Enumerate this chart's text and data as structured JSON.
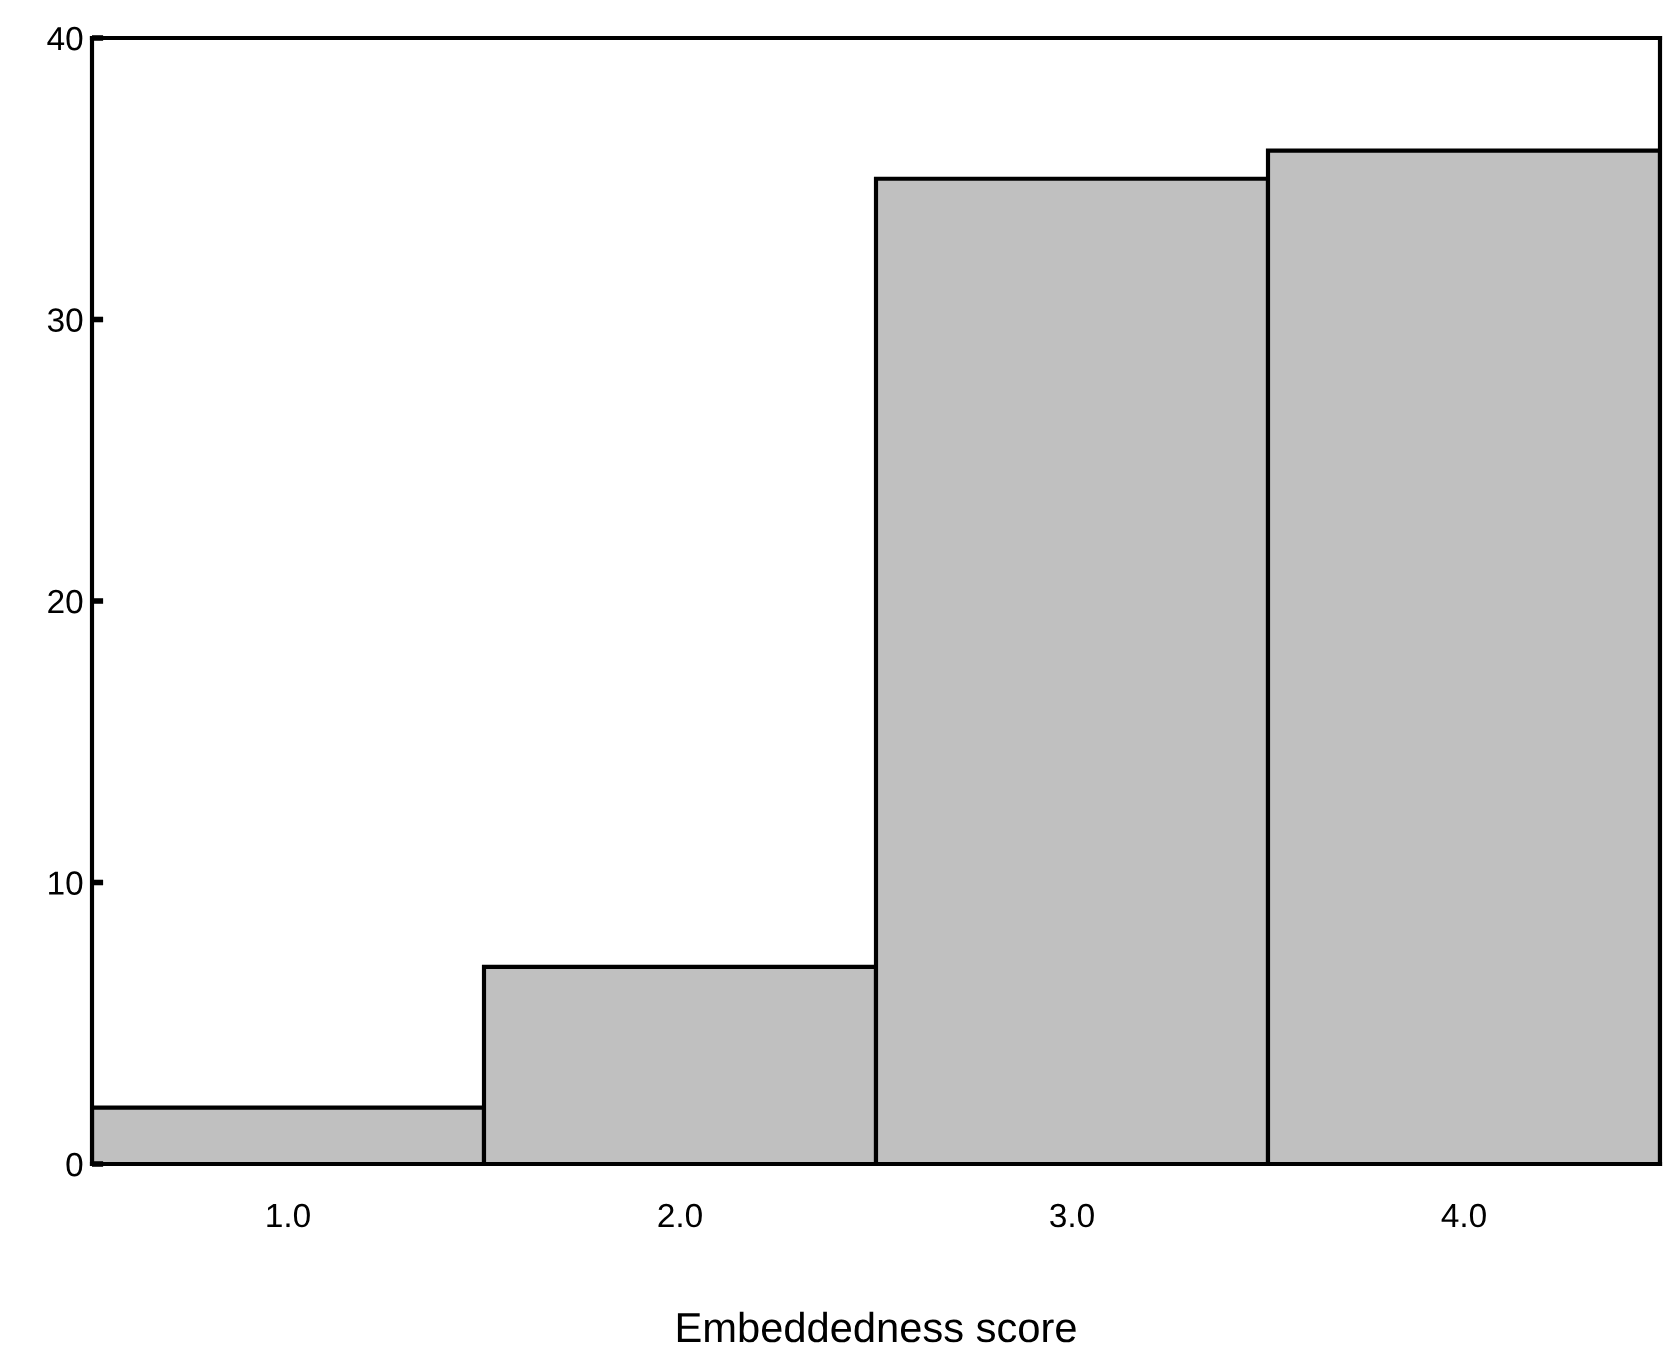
{
  "chart_data": {
    "type": "histogram",
    "xlabel": "Embeddedness score",
    "bins": [
      0.5,
      1.5,
      2.5,
      3.5,
      4.5
    ],
    "values": [
      2,
      7,
      35,
      36
    ],
    "color": "#c0c0c0",
    "xlim": [
      0.5,
      4.5
    ],
    "xticks": [
      {
        "value": 1,
        "label": "1.0"
      },
      {
        "value": 2,
        "label": "2.0"
      },
      {
        "value": 3,
        "label": "3.0"
      },
      {
        "value": 4,
        "label": "4.0"
      }
    ],
    "ylim": [
      0,
      40
    ],
    "yticks": [
      0,
      10,
      20,
      30,
      40
    ],
    "grid": false
  }
}
